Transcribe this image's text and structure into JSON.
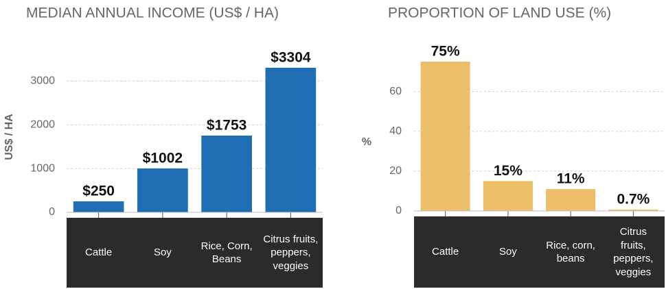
{
  "chart_data": [
    {
      "type": "bar",
      "title": "MEDIAN ANNUAL INCOME (US$ / HA)",
      "ylabel": "US$ / HA",
      "categories": [
        "Cattle",
        "Soy",
        "Rice, Corn, Beans",
        "Citrus fruits, peppers, veggies"
      ],
      "values": [
        250,
        1002,
        1753,
        3304
      ],
      "value_labels": [
        "$250",
        "$1002",
        "$1753",
        "$3304"
      ],
      "color": "#1f6db3",
      "ylim": [
        0,
        3600
      ],
      "yticks": [
        0,
        1000,
        2000,
        3000
      ],
      "grid": true
    },
    {
      "type": "bar",
      "title": "PROPORTION OF LAND USE (%)",
      "ylabel": "%",
      "categories": [
        "Cattle",
        "Soy",
        "Rice, corn, beans",
        "Citrus fruits, peppers, veggies"
      ],
      "values": [
        75,
        15,
        11,
        0.7
      ],
      "value_labels": [
        "75%",
        "15%",
        "11%",
        "0.7%"
      ],
      "color": "#ebbe6a",
      "ylim": [
        0,
        75
      ],
      "yticks": [
        0,
        20,
        40,
        60
      ],
      "grid": true
    }
  ]
}
